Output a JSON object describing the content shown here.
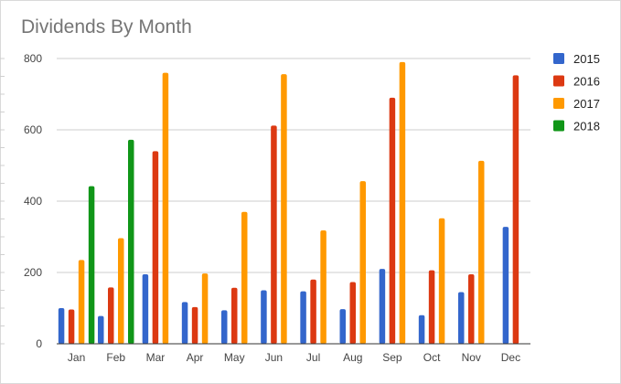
{
  "chart_data": {
    "type": "bar",
    "title": "Dividends By Month",
    "xlabel": "",
    "ylabel": "",
    "ylim": [
      0,
      800
    ],
    "yticks": [
      0,
      200,
      400,
      600,
      800
    ],
    "grid": true,
    "legend": "right",
    "categories": [
      "Jan",
      "Feb",
      "Mar",
      "Apr",
      "May",
      "Jun",
      "Jul",
      "Aug",
      "Sep",
      "Oct",
      "Nov",
      "Dec"
    ],
    "series": [
      {
        "name": "2015",
        "color": "#3366cc",
        "values": [
          100,
          78,
          195,
          117,
          94,
          150,
          147,
          97,
          210,
          80,
          145,
          328
        ]
      },
      {
        "name": "2016",
        "color": "#dc3912",
        "values": [
          96,
          158,
          540,
          103,
          157,
          612,
          180,
          173,
          690,
          206,
          195,
          753
        ]
      },
      {
        "name": "2017",
        "color": "#ff9900",
        "values": [
          235,
          296,
          760,
          197,
          370,
          756,
          318,
          456,
          790,
          352,
          513,
          null
        ]
      },
      {
        "name": "2018",
        "color": "#109618",
        "values": [
          442,
          572,
          null,
          null,
          null,
          null,
          null,
          null,
          null,
          null,
          null,
          null
        ]
      }
    ]
  }
}
